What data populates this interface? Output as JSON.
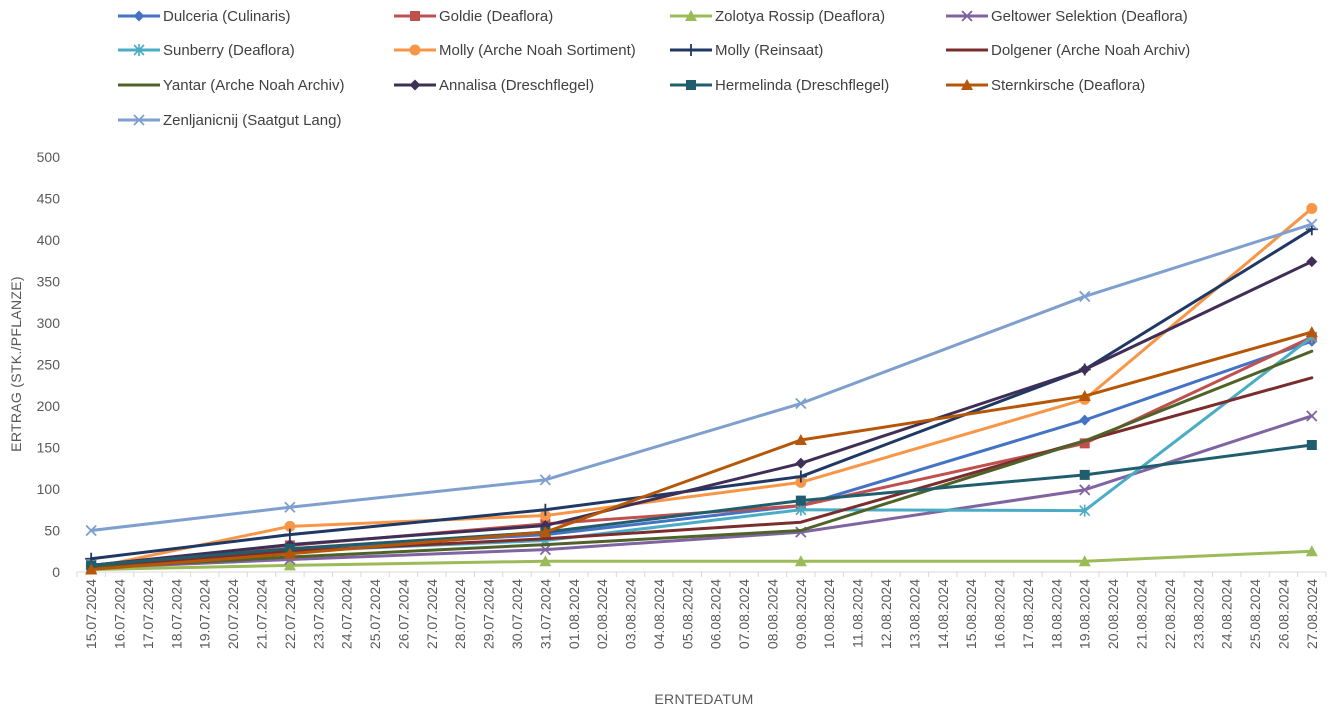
{
  "chart_data": {
    "type": "line",
    "title": "",
    "xlabel": "ERNTEDATUM",
    "ylabel": "ERTRAG (STK./PFLANZE)",
    "ylim": [
      0,
      500
    ],
    "yticks": [
      "0",
      "50",
      "100",
      "150",
      "200",
      "250",
      "300",
      "350",
      "400",
      "450",
      "500"
    ],
    "grid": false,
    "legend_position": "top",
    "categories": [
      "15.07.2024",
      "16.07.2024",
      "17.07.2024",
      "18.07.2024",
      "19.07.2024",
      "20.07.2024",
      "21.07.2024",
      "22.07.2024",
      "23.07.2024",
      "24.07.2024",
      "25.07.2024",
      "26.07.2024",
      "27.07.2024",
      "28.07.2024",
      "29.07.2024",
      "30.07.2024",
      "31.07.2024",
      "01.08.2024",
      "02.08.2024",
      "03.08.2024",
      "04.08.2024",
      "05.08.2024",
      "06.08.2024",
      "07.08.2024",
      "08.08.2024",
      "09.08.2024",
      "10.08.2024",
      "11.08.2024",
      "12.08.2024",
      "13.08.2024",
      "14.08.2024",
      "15.08.2024",
      "16.08.2024",
      "17.08.2024",
      "18.08.2024",
      "19.08.2024",
      "20.08.2024",
      "21.08.2024",
      "22.08.2024",
      "23.08.2024",
      "24.08.2024",
      "25.08.2024",
      "26.08.2024",
      "27.08.2024"
    ],
    "x": [
      "15.07.2024",
      "22.07.2024",
      "31.07.2024",
      "09.08.2024",
      "19.08.2024",
      "27.08.2024"
    ],
    "series": [
      {
        "name": "Dulceria (Culinaris)",
        "color": "#4472c4",
        "marker": "diamond",
        "values": [
          8,
          28,
          45,
          80,
          183,
          278
        ]
      },
      {
        "name": "Goldie (Deaflora)",
        "color": "#c0504d",
        "marker": "square",
        "values": [
          8,
          32,
          58,
          80,
          155,
          283
        ]
      },
      {
        "name": "Zolotya Rossip (Deaflora)",
        "color": "#9bbb59",
        "marker": "triangle",
        "values": [
          3,
          8,
          13,
          13,
          13,
          25
        ]
      },
      {
        "name": "Geltower Selektion (Deaflora)",
        "color": "#8064a2",
        "marker": "x",
        "values": [
          5,
          15,
          27,
          48,
          99,
          188
        ]
      },
      {
        "name": "Sunberry (Deaflora)",
        "color": "#4bacc6",
        "marker": "star",
        "values": [
          8,
          25,
          38,
          75,
          74,
          283
        ]
      },
      {
        "name": "Molly (Arche Noah Sortiment)",
        "color": "#f79646",
        "marker": "circle",
        "values": [
          5,
          55,
          68,
          108,
          208,
          438
        ]
      },
      {
        "name": "Molly (Reinsaat)",
        "color": "#1f3864",
        "marker": "plus",
        "values": [
          16,
          45,
          75,
          115,
          244,
          413
        ]
      },
      {
        "name": "Dolgener (Arche Noah Archiv)",
        "color": "#7b2c2c",
        "marker": "none",
        "values": [
          5,
          25,
          40,
          60,
          158,
          234
        ]
      },
      {
        "name": "Yantar (Arche Noah Archiv)",
        "color": "#4f6228",
        "marker": "none",
        "values": [
          5,
          18,
          33,
          50,
          158,
          266
        ]
      },
      {
        "name": "Annalisa (Dreschflegel)",
        "color": "#3f2f56",
        "marker": "diamond",
        "values": [
          8,
          33,
          56,
          131,
          244,
          374
        ]
      },
      {
        "name": "Hermelinda (Dreschflegel)",
        "color": "#215e6d",
        "marker": "square",
        "values": [
          8,
          28,
          48,
          86,
          117,
          153
        ]
      },
      {
        "name": "Sternkirsche (Deaflora)",
        "color": "#b65708",
        "marker": "triangle",
        "values": [
          3,
          22,
          48,
          159,
          212,
          289
        ]
      },
      {
        "name": "Zenljanicnij (Saatgut Lang)",
        "color": "#7f9fcf",
        "marker": "x",
        "values": [
          50,
          78,
          111,
          203,
          332,
          419
        ]
      }
    ]
  }
}
